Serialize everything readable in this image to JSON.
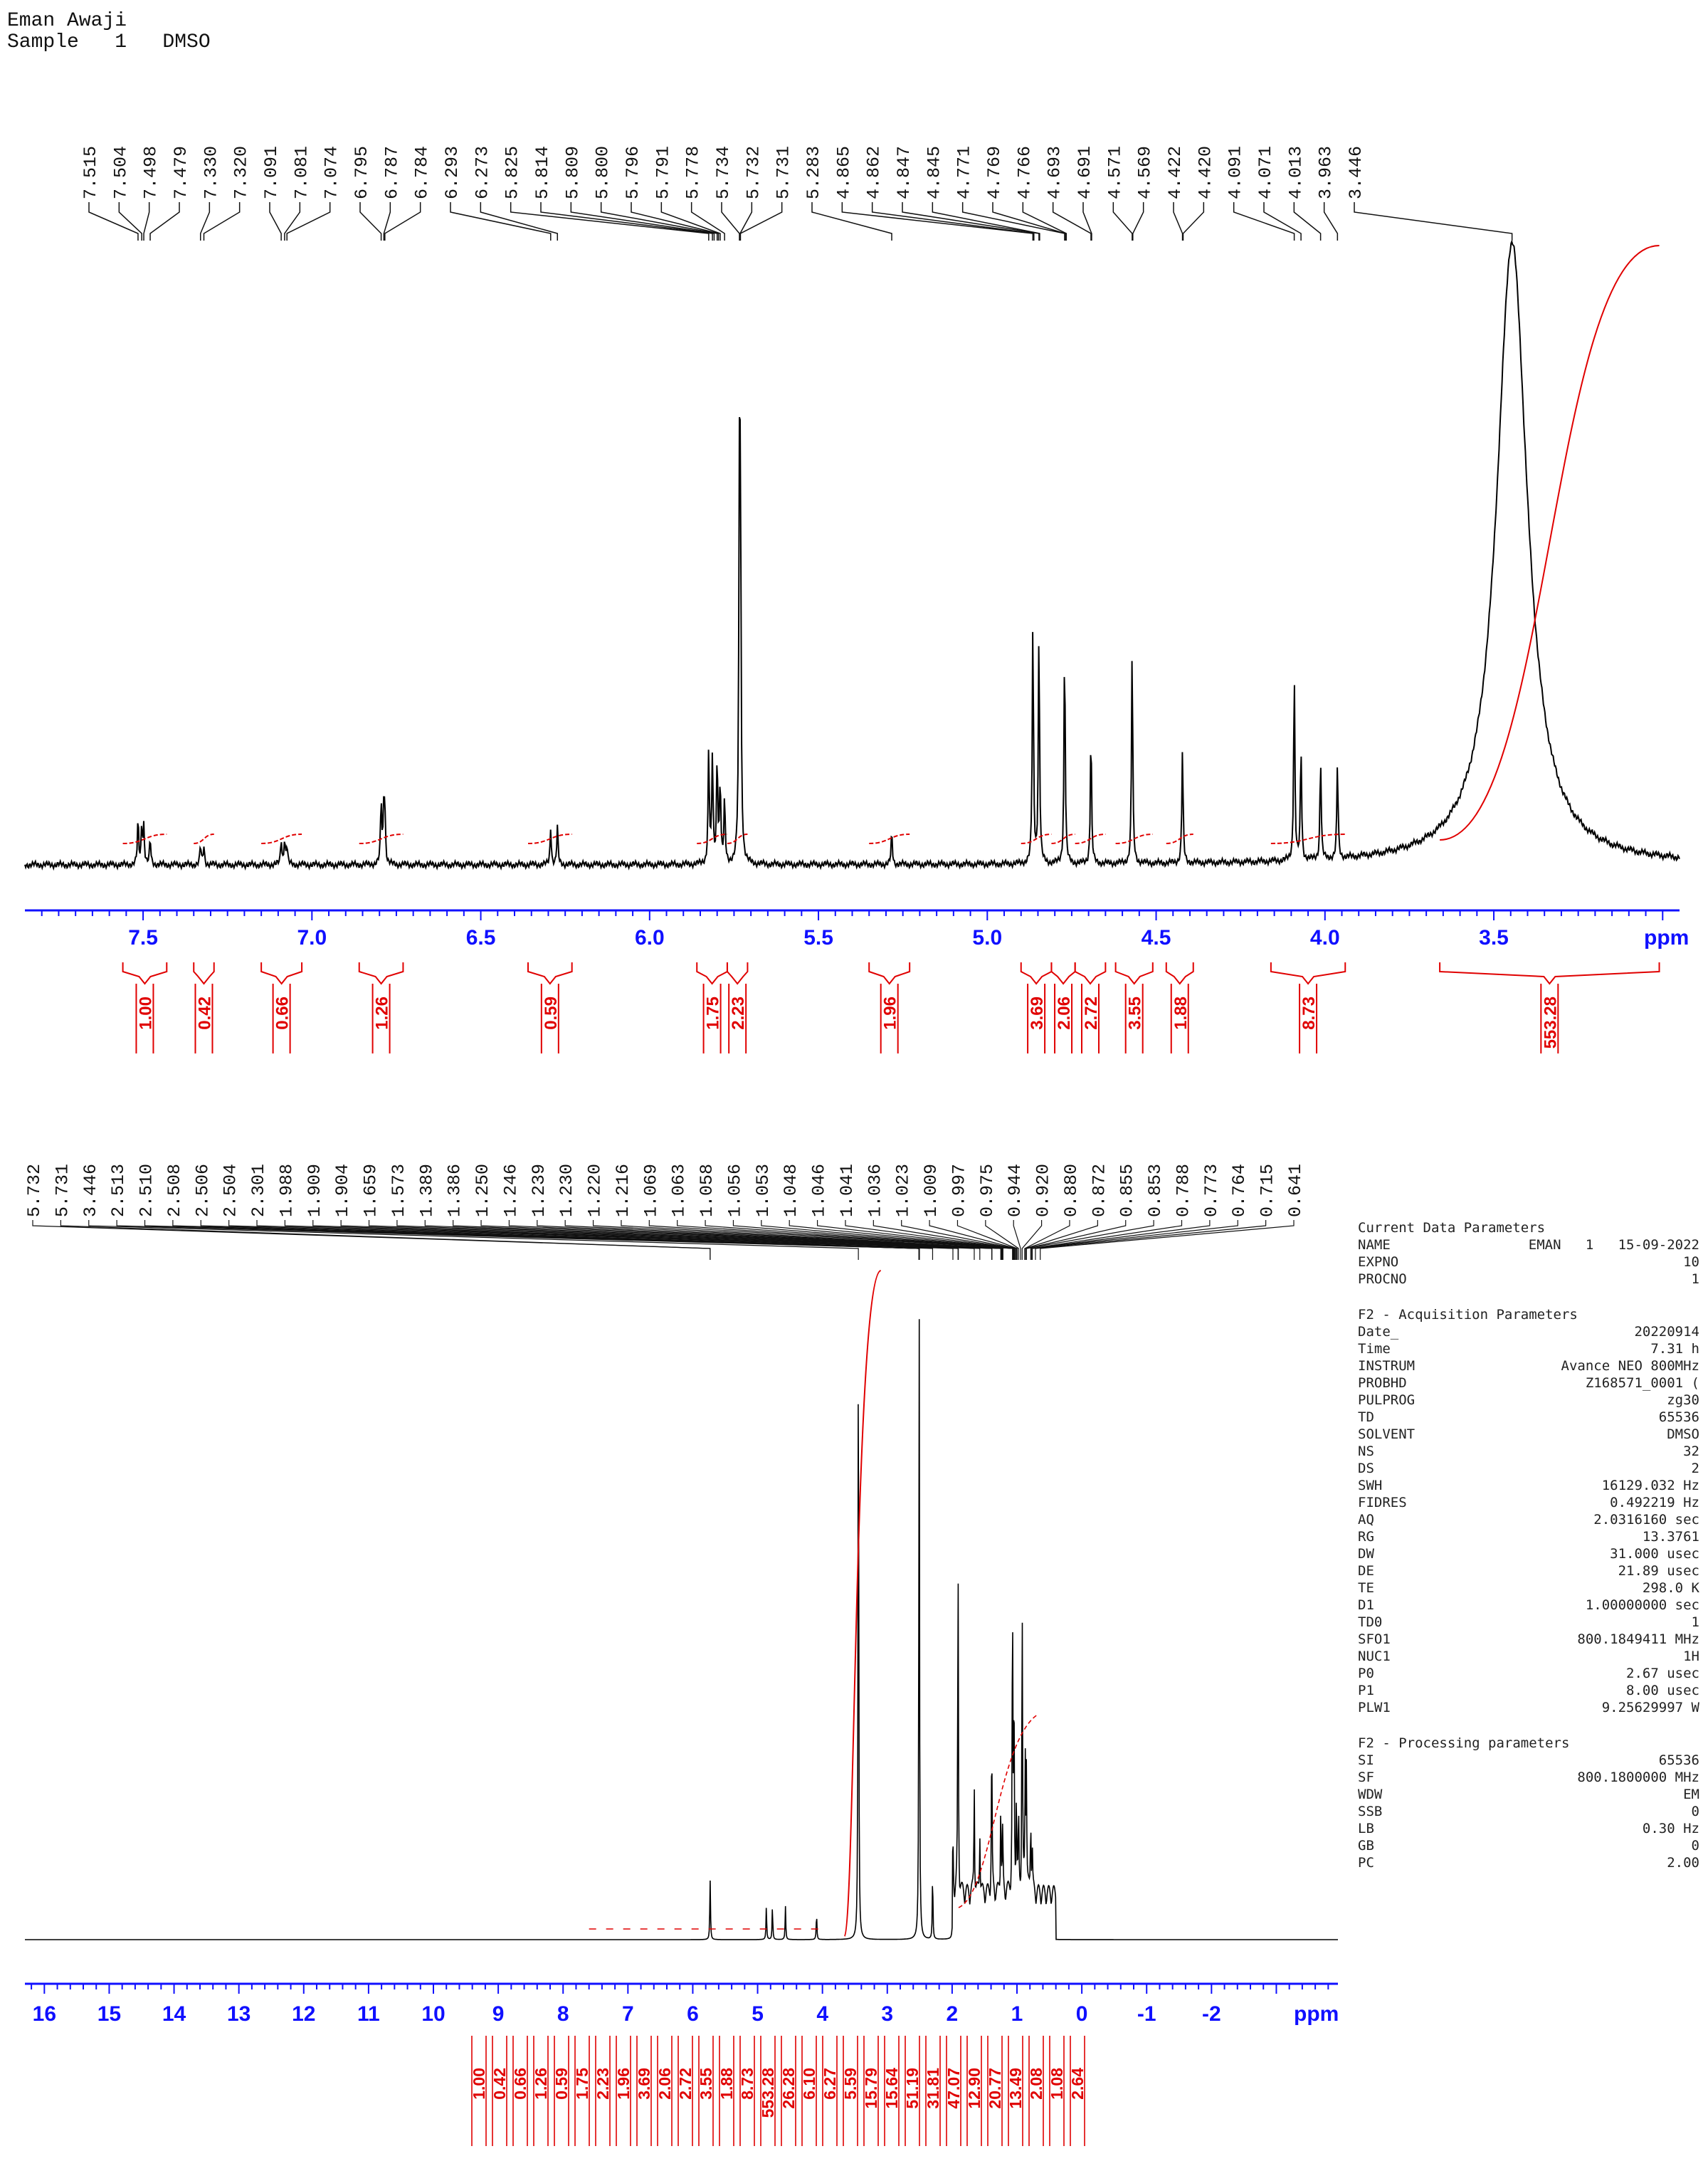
{
  "header": {
    "line1": "Eman Awaji",
    "line2": "Sample   1   DMSO"
  },
  "chart_data": [
    {
      "type": "line",
      "title": "",
      "xlabel": "ppm",
      "xlim": [
        7.85,
        2.95
      ],
      "ticks": [
        "7.5",
        "7.0",
        "6.5",
        "6.0",
        "5.5",
        "5.0",
        "4.5",
        "4.0",
        "3.5"
      ],
      "peak_labels": [
        "7.515",
        "7.504",
        "7.498",
        "7.479",
        "7.330",
        "7.320",
        "7.091",
        "7.081",
        "7.074",
        "6.795",
        "6.787",
        "6.784",
        "6.293",
        "6.273",
        "5.825",
        "5.814",
        "5.809",
        "5.800",
        "5.796",
        "5.791",
        "5.778",
        "5.734",
        "5.732",
        "5.731",
        "5.283",
        "4.865",
        "4.862",
        "4.847",
        "4.845",
        "4.771",
        "4.769",
        "4.766",
        "4.693",
        "4.691",
        "4.571",
        "4.569",
        "4.422",
        "4.420",
        "4.091",
        "4.071",
        "4.013",
        "3.963",
        "3.446"
      ],
      "peaks": [
        {
          "ppm": 7.515,
          "h": 0.07
        },
        {
          "ppm": 7.504,
          "h": 0.06
        },
        {
          "ppm": 7.498,
          "h": 0.06
        },
        {
          "ppm": 7.479,
          "h": 0.04
        },
        {
          "ppm": 7.33,
          "h": 0.03
        },
        {
          "ppm": 7.32,
          "h": 0.03
        },
        {
          "ppm": 7.091,
          "h": 0.04
        },
        {
          "ppm": 7.081,
          "h": 0.04
        },
        {
          "ppm": 7.074,
          "h": 0.03
        },
        {
          "ppm": 6.795,
          "h": 0.1
        },
        {
          "ppm": 6.787,
          "h": 0.09
        },
        {
          "ppm": 6.784,
          "h": 0.07
        },
        {
          "ppm": 6.293,
          "h": 0.06
        },
        {
          "ppm": 6.273,
          "h": 0.06
        },
        {
          "ppm": 5.825,
          "h": 0.18
        },
        {
          "ppm": 5.814,
          "h": 0.17
        },
        {
          "ppm": 5.8,
          "h": 0.17
        },
        {
          "ppm": 5.791,
          "h": 0.13
        },
        {
          "ppm": 5.778,
          "h": 0.1
        },
        {
          "ppm": 5.734,
          "h": 0.55
        },
        {
          "ppm": 5.731,
          "h": 0.5
        },
        {
          "ppm": 5.283,
          "h": 0.05
        },
        {
          "ppm": 4.865,
          "h": 0.38
        },
        {
          "ppm": 4.847,
          "h": 0.37
        },
        {
          "ppm": 4.771,
          "h": 0.35
        },
        {
          "ppm": 4.693,
          "h": 0.21
        },
        {
          "ppm": 4.571,
          "h": 0.34
        },
        {
          "ppm": 4.422,
          "h": 0.18
        },
        {
          "ppm": 4.091,
          "h": 0.3
        },
        {
          "ppm": 4.071,
          "h": 0.18
        },
        {
          "ppm": 4.013,
          "h": 0.16
        },
        {
          "ppm": 3.963,
          "h": 0.15
        },
        {
          "ppm": 3.446,
          "h": 1.0
        }
      ],
      "integrals": [
        {
          "from": 7.56,
          "to": 7.43,
          "value": "1.00"
        },
        {
          "from": 7.35,
          "to": 7.29,
          "value": "0.42"
        },
        {
          "from": 7.15,
          "to": 7.03,
          "value": "0.66"
        },
        {
          "from": 6.86,
          "to": 6.73,
          "value": "1.26"
        },
        {
          "from": 6.36,
          "to": 6.23,
          "value": "0.59"
        },
        {
          "from": 5.86,
          "to": 5.77,
          "value": "1.75"
        },
        {
          "from": 5.77,
          "to": 5.71,
          "value": "2.23"
        },
        {
          "from": 5.35,
          "to": 5.23,
          "value": "1.96"
        },
        {
          "from": 4.9,
          "to": 4.81,
          "value": "3.69"
        },
        {
          "from": 4.81,
          "to": 4.74,
          "value": "2.06"
        },
        {
          "from": 4.74,
          "to": 4.65,
          "value": "2.72"
        },
        {
          "from": 4.62,
          "to": 4.51,
          "value": "3.55"
        },
        {
          "from": 4.47,
          "to": 4.39,
          "value": "1.88"
        },
        {
          "from": 4.16,
          "to": 3.94,
          "value": "8.73"
        },
        {
          "from": 3.66,
          "to": 3.01,
          "value": "553.28"
        }
      ]
    },
    {
      "type": "line",
      "title": "",
      "xlabel": "ppm",
      "xlim": [
        16.3,
        -3.95
      ],
      "ticks": [
        "16",
        "15",
        "14",
        "13",
        "12",
        "11",
        "10",
        "9",
        "8",
        "7",
        "6",
        "5",
        "4",
        "3",
        "2",
        "1",
        "0",
        "-1",
        "-2"
      ],
      "peak_labels": [
        "5.732",
        "5.731",
        "3.446",
        "2.513",
        "2.510",
        "2.508",
        "2.506",
        "2.504",
        "2.301",
        "1.988",
        "1.909",
        "1.904",
        "1.659",
        "1.573",
        "1.389",
        "1.386",
        "1.250",
        "1.246",
        "1.239",
        "1.230",
        "1.220",
        "1.216",
        "1.069",
        "1.063",
        "1.058",
        "1.056",
        "1.053",
        "1.048",
        "1.046",
        "1.041",
        "1.036",
        "1.023",
        "1.009",
        "0.997",
        "0.975",
        "0.944",
        "0.920",
        "0.880",
        "0.872",
        "0.855",
        "0.853",
        "0.788",
        "0.773",
        "0.764",
        "0.715",
        "0.641"
      ],
      "peaks": [
        {
          "ppm": 3.446,
          "h": 1.0
        },
        {
          "ppm": 2.508,
          "h": 0.97
        },
        {
          "ppm": 1.909,
          "h": 0.51
        },
        {
          "ppm": 1.659,
          "h": 0.17
        },
        {
          "ppm": 1.389,
          "h": 0.24
        },
        {
          "ppm": 1.25,
          "h": 0.15
        },
        {
          "ppm": 1.069,
          "h": 0.45
        },
        {
          "ppm": 1.046,
          "h": 0.3
        },
        {
          "ppm": 0.92,
          "h": 0.44
        },
        {
          "ppm": 0.872,
          "h": 0.2
        },
        {
          "ppm": 0.855,
          "h": 0.18
        },
        {
          "ppm": 0.788,
          "h": 0.12
        },
        {
          "ppm": 5.732,
          "h": 0.09
        },
        {
          "ppm": 4.865,
          "h": 0.05
        },
        {
          "ppm": 4.771,
          "h": 0.05
        },
        {
          "ppm": 4.571,
          "h": 0.05
        },
        {
          "ppm": 4.091,
          "h": 0.04
        },
        {
          "ppm": 2.301,
          "h": 0.1
        },
        {
          "ppm": 1.988,
          "h": 0.08
        },
        {
          "ppm": 1.573,
          "h": 0.1
        },
        {
          "ppm": 1.22,
          "h": 0.09
        },
        {
          "ppm": 1.009,
          "h": 0.14
        },
        {
          "ppm": 0.975,
          "h": 0.11
        },
        {
          "ppm": 0.764,
          "h": 0.06
        }
      ],
      "integral_values": [
        "1.00",
        "0.42",
        "0.66",
        "1.26",
        "0.59",
        "1.75",
        "2.23",
        "1.96",
        "3.69",
        "2.06",
        "2.72",
        "3.55",
        "1.88",
        "8.73",
        "553.28",
        "26.28",
        "6.10",
        "6.27",
        "5.59",
        "15.79",
        "15.64",
        "51.19",
        "31.81",
        "47.07",
        "12.90",
        "20.77",
        "13.49",
        "2.08",
        "1.08",
        "2.64"
      ]
    }
  ],
  "parameters": [
    {
      "title": "Current Data Parameters",
      "rows": [
        [
          "NAME",
          "EMAN   1   15-09-2022"
        ],
        [
          "EXPNO",
          "10"
        ],
        [
          "PROCNO",
          "1"
        ]
      ]
    },
    {
      "title": "F2 - Acquisition Parameters",
      "rows": [
        [
          "Date_",
          "20220914"
        ],
        [
          "Time",
          "7.31 h"
        ],
        [
          "INSTRUM",
          "Avance NEO 800MHz"
        ],
        [
          "PROBHD",
          "Z168571_0001 ("
        ],
        [
          "PULPROG",
          "zg30"
        ],
        [
          "TD",
          "65536"
        ],
        [
          "SOLVENT",
          "DMSO"
        ],
        [
          "NS",
          "32"
        ],
        [
          "DS",
          "2"
        ],
        [
          "SWH",
          "16129.032 Hz"
        ],
        [
          "FIDRES",
          "0.492219 Hz"
        ],
        [
          "AQ",
          "2.0316160 sec"
        ],
        [
          "RG",
          "13.3761"
        ],
        [
          "DW",
          "31.000 usec"
        ],
        [
          "DE",
          "21.89 usec"
        ],
        [
          "TE",
          "298.0 K"
        ],
        [
          "D1",
          "1.00000000 sec"
        ],
        [
          "TD0",
          "1"
        ],
        [
          "SFO1",
          "800.1849411 MHz"
        ],
        [
          "NUC1",
          "1H"
        ],
        [
          "P0",
          "2.67 usec"
        ],
        [
          "P1",
          "8.00 usec"
        ],
        [
          "PLW1",
          "9.25629997 W"
        ]
      ]
    },
    {
      "title": "F2 - Processing parameters",
      "rows": [
        [
          "SI",
          "65536"
        ],
        [
          "SF",
          "800.1800000 MHz"
        ],
        [
          "WDW",
          "EM"
        ],
        [
          "SSB",
          "0"
        ],
        [
          "LB",
          "0.30 Hz"
        ],
        [
          "GB",
          "0"
        ],
        [
          "PC",
          "2.00"
        ]
      ]
    }
  ]
}
